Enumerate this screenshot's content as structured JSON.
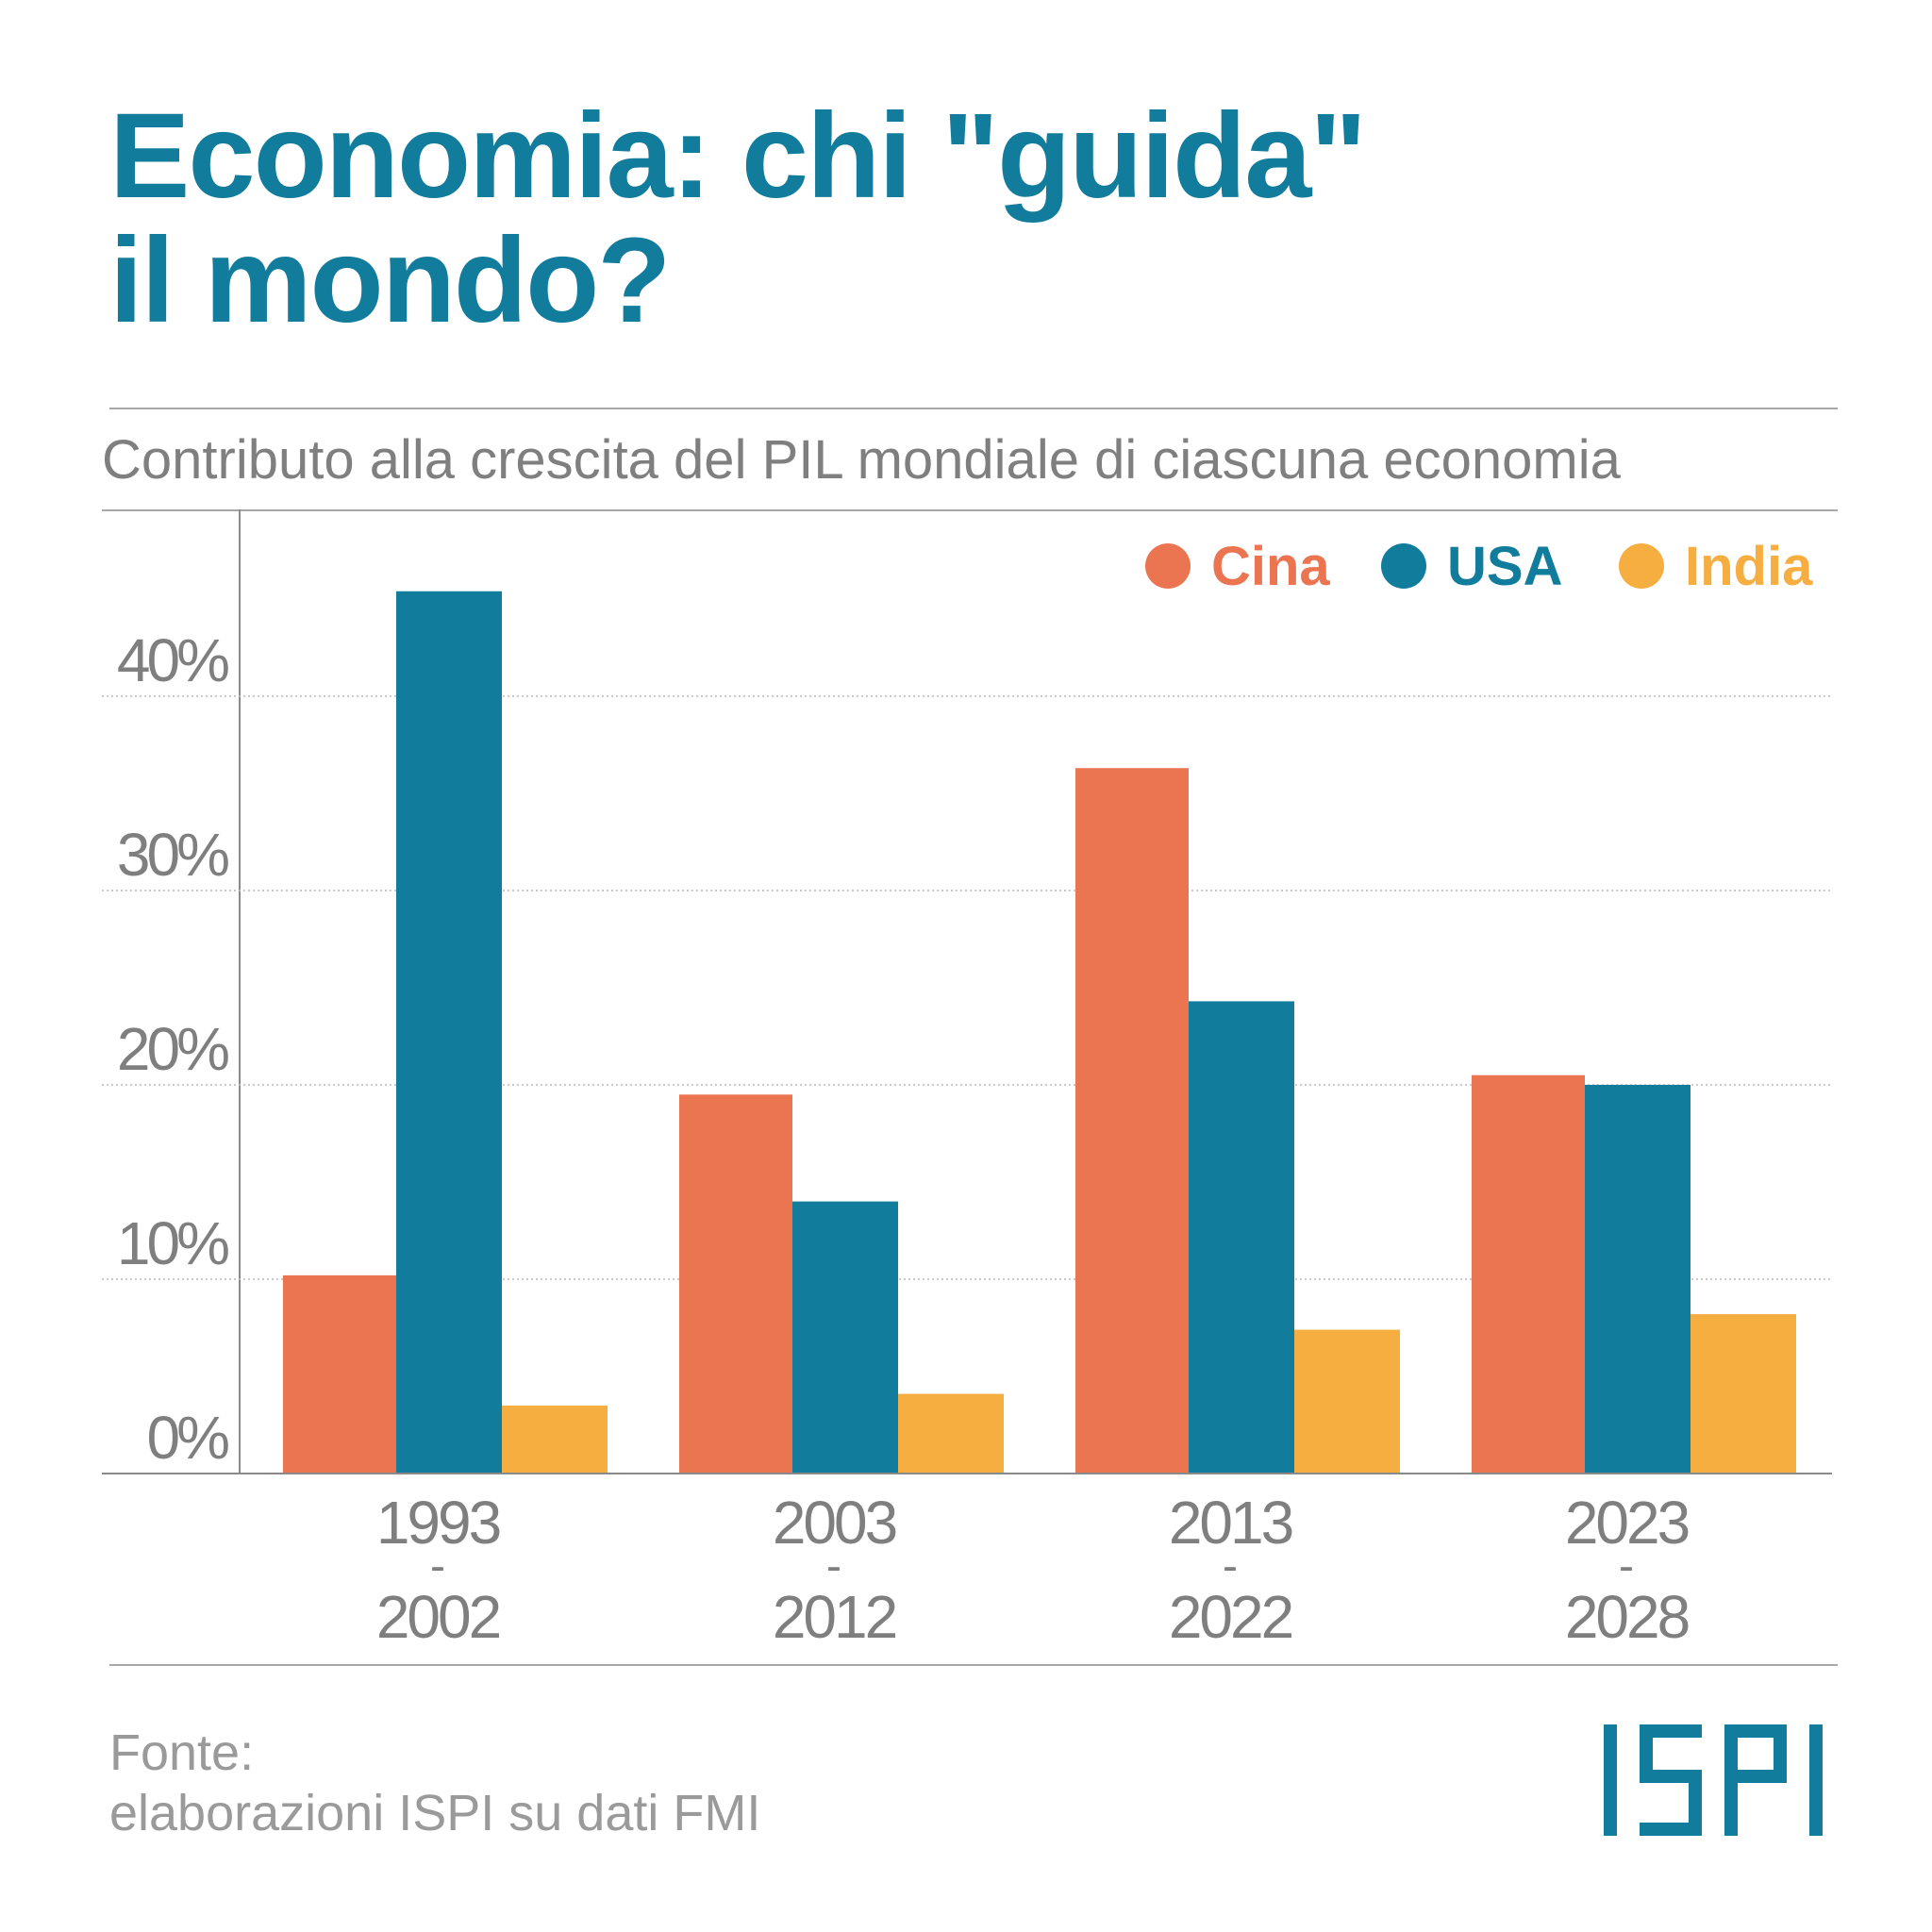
{
  "header": {
    "title_line1": "Economia: chi \"guida\"",
    "title_line2": "il mondo?"
  },
  "subtitle": "Contributo alla crescita del PIL mondiale di ciascuna economia",
  "footer": {
    "source_line1": "Fonte:",
    "source_line2": "elaborazioni ISPI su dati FMI",
    "logo_text": "ISPI"
  },
  "colors": {
    "title": "#117c9b",
    "cina": "#ec7551",
    "usa": "#117c9b",
    "india": "#f6ae41",
    "axis_text": "#7f7f7f"
  },
  "chart_data": {
    "type": "bar",
    "title": "Contributo alla crescita del PIL mondiale di ciascuna economia",
    "categories": [
      {
        "top": "1993",
        "sep": "-",
        "bottom": "2002"
      },
      {
        "top": "2003",
        "sep": "-",
        "bottom": "2012"
      },
      {
        "top": "2013",
        "sep": "-",
        "bottom": "2022"
      },
      {
        "top": "2023",
        "sep": "-",
        "bottom": "2028"
      }
    ],
    "series": [
      {
        "name": "Cina",
        "color": "#ec7551",
        "values": [
          10.2,
          19.5,
          36.3,
          20.5
        ]
      },
      {
        "name": "USA",
        "color": "#117c9b",
        "values": [
          45.4,
          14.0,
          24.3,
          20.0
        ]
      },
      {
        "name": "India",
        "color": "#f6ae41",
        "values": [
          3.5,
          4.1,
          7.4,
          8.2
        ]
      }
    ],
    "yticks": [
      0,
      10,
      20,
      30,
      40
    ],
    "ytick_labels": [
      "0%",
      "10%",
      "20%",
      "30%",
      "40%"
    ],
    "ylim": [
      0,
      50
    ],
    "grid": true,
    "legend_position": "top-right"
  }
}
